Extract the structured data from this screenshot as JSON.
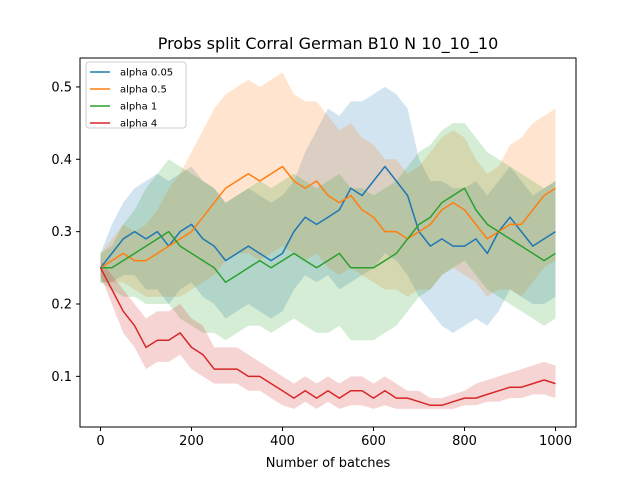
{
  "chart_data": {
    "type": "line",
    "title": "Probs split Corral German B10 N 10_10_10",
    "xlabel": "Number of batches",
    "ylabel": "",
    "xlim": [
      -45,
      1045
    ],
    "ylim": [
      0.03,
      0.54
    ],
    "xticks": [
      0,
      200,
      400,
      600,
      800,
      1000
    ],
    "yticks": [
      0.1,
      0.2,
      0.3,
      0.4,
      0.5
    ],
    "xtick_labels": [
      "0",
      "200",
      "400",
      "600",
      "800",
      "1000"
    ],
    "ytick_labels": [
      "0.1",
      "0.2",
      "0.3",
      "0.4",
      "0.5"
    ],
    "grid": false,
    "legend_position": "top-left",
    "x": [
      0,
      25,
      50,
      75,
      100,
      125,
      150,
      175,
      200,
      225,
      250,
      275,
      300,
      325,
      350,
      375,
      400,
      425,
      450,
      475,
      500,
      525,
      550,
      575,
      600,
      625,
      650,
      675,
      700,
      725,
      750,
      775,
      800,
      825,
      850,
      875,
      900,
      925,
      950,
      975,
      1000
    ],
    "series": [
      {
        "name": "alpha 0.05",
        "color": "#1f77b4",
        "values": [
          0.25,
          0.27,
          0.29,
          0.3,
          0.29,
          0.3,
          0.28,
          0.3,
          0.31,
          0.29,
          0.28,
          0.26,
          0.27,
          0.28,
          0.27,
          0.26,
          0.27,
          0.3,
          0.32,
          0.31,
          0.32,
          0.33,
          0.36,
          0.35,
          0.37,
          0.39,
          0.37,
          0.35,
          0.3,
          0.28,
          0.29,
          0.28,
          0.28,
          0.29,
          0.27,
          0.3,
          0.32,
          0.3,
          0.28,
          0.29,
          0.3
        ],
        "upper": [
          0.27,
          0.31,
          0.34,
          0.36,
          0.37,
          0.38,
          0.37,
          0.38,
          0.39,
          0.37,
          0.36,
          0.34,
          0.35,
          0.36,
          0.35,
          0.34,
          0.35,
          0.37,
          0.41,
          0.44,
          0.47,
          0.46,
          0.48,
          0.48,
          0.49,
          0.5,
          0.49,
          0.47,
          0.4,
          0.37,
          0.37,
          0.36,
          0.36,
          0.37,
          0.35,
          0.37,
          0.39,
          0.37,
          0.35,
          0.36,
          0.37
        ],
        "lower": [
          0.23,
          0.23,
          0.24,
          0.24,
          0.22,
          0.22,
          0.2,
          0.22,
          0.23,
          0.21,
          0.2,
          0.18,
          0.19,
          0.2,
          0.19,
          0.18,
          0.19,
          0.22,
          0.24,
          0.23,
          0.24,
          0.22,
          0.23,
          0.24,
          0.25,
          0.27,
          0.26,
          0.24,
          0.21,
          0.19,
          0.17,
          0.16,
          0.17,
          0.18,
          0.17,
          0.19,
          0.22,
          0.21,
          0.2,
          0.2,
          0.21
        ]
      },
      {
        "name": "alpha 0.5",
        "color": "#ff7f0e",
        "values": [
          0.25,
          0.26,
          0.27,
          0.26,
          0.26,
          0.27,
          0.28,
          0.29,
          0.3,
          0.32,
          0.34,
          0.36,
          0.37,
          0.38,
          0.37,
          0.38,
          0.39,
          0.37,
          0.36,
          0.37,
          0.35,
          0.34,
          0.35,
          0.33,
          0.32,
          0.3,
          0.3,
          0.29,
          0.3,
          0.31,
          0.33,
          0.34,
          0.33,
          0.31,
          0.29,
          0.3,
          0.31,
          0.31,
          0.33,
          0.35,
          0.36
        ],
        "upper": [
          0.27,
          0.29,
          0.31,
          0.3,
          0.31,
          0.33,
          0.36,
          0.38,
          0.41,
          0.44,
          0.47,
          0.49,
          0.5,
          0.51,
          0.5,
          0.51,
          0.52,
          0.49,
          0.48,
          0.48,
          0.46,
          0.44,
          0.45,
          0.43,
          0.42,
          0.4,
          0.4,
          0.38,
          0.39,
          0.41,
          0.43,
          0.44,
          0.43,
          0.4,
          0.38,
          0.39,
          0.42,
          0.43,
          0.45,
          0.46,
          0.47
        ],
        "lower": [
          0.23,
          0.23,
          0.23,
          0.22,
          0.21,
          0.21,
          0.21,
          0.21,
          0.22,
          0.23,
          0.24,
          0.26,
          0.27,
          0.27,
          0.26,
          0.27,
          0.28,
          0.27,
          0.26,
          0.27,
          0.25,
          0.24,
          0.25,
          0.24,
          0.23,
          0.22,
          0.22,
          0.21,
          0.22,
          0.22,
          0.24,
          0.25,
          0.24,
          0.23,
          0.21,
          0.22,
          0.22,
          0.21,
          0.23,
          0.25,
          0.26
        ]
      },
      {
        "name": "alpha 1",
        "color": "#2ca02c",
        "values": [
          0.25,
          0.25,
          0.26,
          0.27,
          0.28,
          0.29,
          0.3,
          0.28,
          0.27,
          0.26,
          0.25,
          0.23,
          0.24,
          0.25,
          0.26,
          0.25,
          0.26,
          0.27,
          0.26,
          0.25,
          0.26,
          0.27,
          0.25,
          0.25,
          0.25,
          0.26,
          0.27,
          0.29,
          0.31,
          0.32,
          0.34,
          0.35,
          0.36,
          0.33,
          0.31,
          0.3,
          0.29,
          0.28,
          0.27,
          0.26,
          0.27
        ],
        "upper": [
          0.27,
          0.28,
          0.31,
          0.33,
          0.36,
          0.38,
          0.4,
          0.39,
          0.38,
          0.37,
          0.36,
          0.34,
          0.35,
          0.36,
          0.37,
          0.36,
          0.37,
          0.38,
          0.37,
          0.36,
          0.37,
          0.38,
          0.36,
          0.36,
          0.35,
          0.36,
          0.37,
          0.39,
          0.41,
          0.42,
          0.44,
          0.45,
          0.45,
          0.43,
          0.41,
          0.4,
          0.39,
          0.38,
          0.37,
          0.36,
          0.37
        ],
        "lower": [
          0.23,
          0.22,
          0.21,
          0.21,
          0.2,
          0.2,
          0.2,
          0.18,
          0.17,
          0.16,
          0.16,
          0.15,
          0.16,
          0.17,
          0.17,
          0.16,
          0.17,
          0.18,
          0.17,
          0.16,
          0.16,
          0.17,
          0.15,
          0.15,
          0.15,
          0.16,
          0.17,
          0.19,
          0.21,
          0.22,
          0.24,
          0.25,
          0.26,
          0.24,
          0.22,
          0.21,
          0.2,
          0.19,
          0.18,
          0.17,
          0.18
        ]
      },
      {
        "name": "alpha 4",
        "color": "#d62728",
        "values": [
          0.25,
          0.22,
          0.19,
          0.17,
          0.14,
          0.15,
          0.15,
          0.16,
          0.14,
          0.13,
          0.11,
          0.11,
          0.11,
          0.1,
          0.1,
          0.09,
          0.08,
          0.07,
          0.08,
          0.07,
          0.08,
          0.07,
          0.08,
          0.08,
          0.07,
          0.08,
          0.07,
          0.07,
          0.065,
          0.06,
          0.06,
          0.065,
          0.07,
          0.07,
          0.075,
          0.08,
          0.085,
          0.085,
          0.09,
          0.095,
          0.09
        ],
        "upper": [
          0.26,
          0.24,
          0.22,
          0.2,
          0.18,
          0.19,
          0.19,
          0.2,
          0.18,
          0.17,
          0.14,
          0.14,
          0.14,
          0.13,
          0.12,
          0.11,
          0.1,
          0.09,
          0.1,
          0.09,
          0.1,
          0.09,
          0.1,
          0.1,
          0.09,
          0.1,
          0.09,
          0.08,
          0.08,
          0.07,
          0.07,
          0.075,
          0.08,
          0.09,
          0.095,
          0.1,
          0.105,
          0.11,
          0.115,
          0.12,
          0.115
        ],
        "lower": [
          0.24,
          0.2,
          0.16,
          0.14,
          0.11,
          0.12,
          0.12,
          0.13,
          0.11,
          0.1,
          0.09,
          0.09,
          0.09,
          0.08,
          0.08,
          0.07,
          0.06,
          0.055,
          0.065,
          0.055,
          0.065,
          0.055,
          0.06,
          0.06,
          0.055,
          0.06,
          0.055,
          0.055,
          0.055,
          0.055,
          0.055,
          0.055,
          0.06,
          0.06,
          0.065,
          0.065,
          0.07,
          0.07,
          0.075,
          0.075,
          0.07
        ]
      }
    ]
  }
}
